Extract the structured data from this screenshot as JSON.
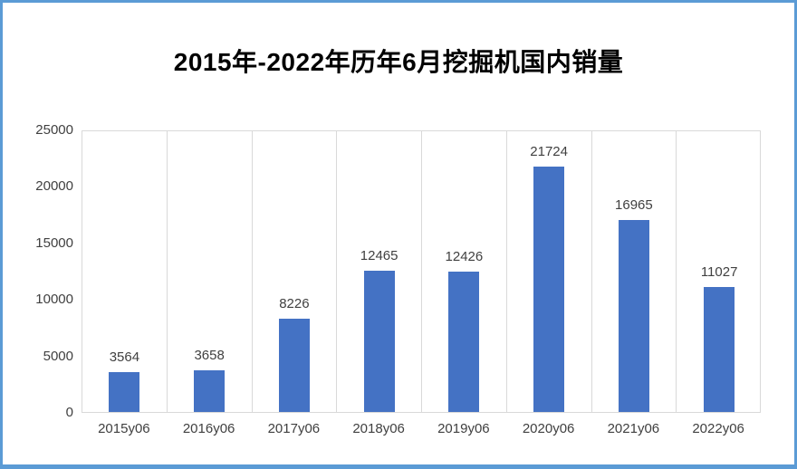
{
  "window": {
    "frame_border_color": "#5B9BD5",
    "background_color": "#FFFFFF"
  },
  "chart_data": {
    "type": "bar",
    "title": "2015年-2022年历年6月挖掘机国内销量",
    "categories": [
      "2015y06",
      "2016y06",
      "2017y06",
      "2018y06",
      "2019y06",
      "2020y06",
      "2021y06",
      "2022y06"
    ],
    "values": [
      3564,
      3658,
      8226,
      12465,
      12426,
      21724,
      16965,
      11027
    ],
    "data_labels": [
      "3564",
      "3658",
      "8226",
      "12465",
      "12426",
      "21724",
      "16965",
      "11027"
    ],
    "xlabel": "",
    "ylabel": "",
    "ylim": [
      0,
      25000
    ],
    "yticks": [
      0,
      5000,
      10000,
      15000,
      20000,
      25000
    ],
    "grid": "vertical-category-gridlines",
    "legend": "none",
    "bar_color": "#4472C4",
    "gridline_color": "#D9D9D9",
    "axis_label_color": "#404040",
    "title_color": "#000000"
  }
}
